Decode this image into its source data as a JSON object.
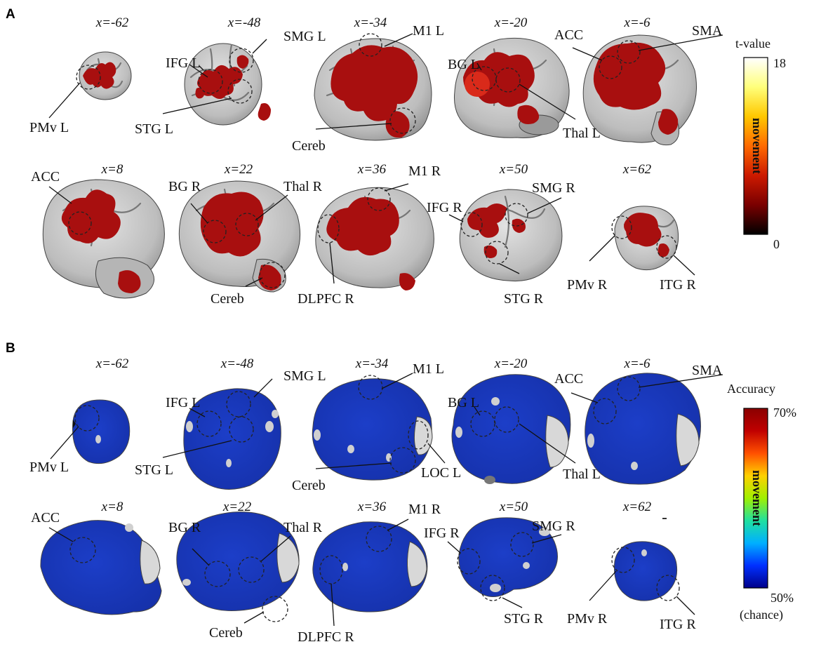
{
  "panels": [
    {
      "letter": "A",
      "colorbar": {
        "title": "t-value",
        "max": "18",
        "min": "0",
        "label": "movement",
        "colors": [
          "#000000",
          "#7a0000",
          "#cc1a00",
          "#ff6a00",
          "#ffc800",
          "#ffff7a",
          "#ffffff"
        ]
      },
      "rows": [
        {
          "slices": [
            "x=-62",
            "x=-48",
            "x=-34",
            "x=-20",
            "x=-6"
          ]
        },
        {
          "slices": [
            "x=8",
            "x=22",
            "x=36",
            "x=50",
            "x=62"
          ]
        }
      ],
      "labels": [
        "PMv L",
        "IFG L",
        "STG L",
        "SMG L",
        "M1 L",
        "Cereb",
        "BG L",
        "Thal L",
        "ACC",
        "SMA",
        "ACC",
        "BG R",
        "Thal R",
        "Cereb",
        "M1 R",
        "DLPFC R",
        "IFG R",
        "SMG R",
        "STG R",
        "PMv R",
        "ITG R"
      ]
    },
    {
      "letter": "B",
      "colorbar": {
        "title": "Accuracy",
        "max": "70%",
        "min": "50%",
        "min_note": "(chance)",
        "label": "movement",
        "colors": [
          "#00008a",
          "#0030ff",
          "#00b0ff",
          "#20e0a0",
          "#a0f000",
          "#ffd000",
          "#ff5000",
          "#c00000",
          "#8a0000"
        ]
      },
      "rows": [
        {
          "slices": [
            "x=-62",
            "x=-48",
            "x=-34",
            "x=-20",
            "x=-6"
          ]
        },
        {
          "slices": [
            "x=8",
            "x=22",
            "x=36",
            "x=50",
            "x=62"
          ]
        }
      ],
      "labels": [
        "PMv L",
        "IFG L",
        "STG L",
        "SMG L",
        "M1 L",
        "Cereb",
        "LOC L",
        "BG L",
        "Thal L",
        "ACC",
        "SMA",
        "ACC",
        "BG R",
        "Thal R",
        "Cereb",
        "M1 R",
        "DLPFC R",
        "IFG R",
        "SMG R",
        "STG R",
        "PMv R",
        "ITG R"
      ]
    }
  ]
}
